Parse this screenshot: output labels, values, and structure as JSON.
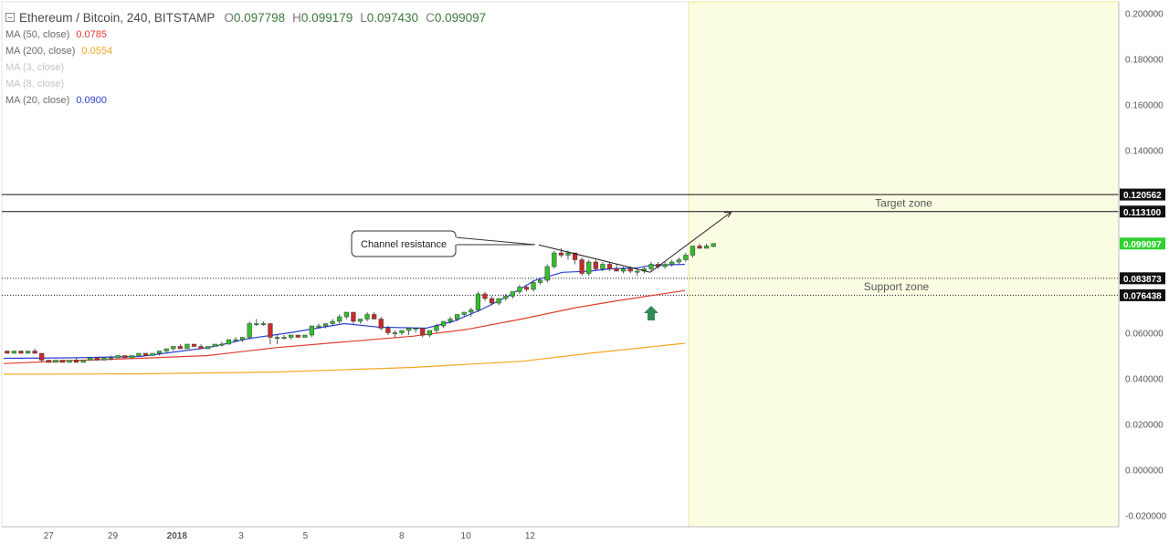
{
  "header": {
    "symbol": "Ethereum / Bitcoin, 240, BITSTAMP",
    "ohlc": [
      {
        "key": "O",
        "value": "0.097798"
      },
      {
        "key": "H",
        "value": "0.099179"
      },
      {
        "key": "L",
        "value": "0.097430"
      },
      {
        "key": "C",
        "value": "0.099097"
      }
    ]
  },
  "indicators": [
    {
      "name": "MA (50, close)",
      "value": "0.0785",
      "color": "#e03c31",
      "faded": false
    },
    {
      "name": "MA (200, close)",
      "value": "0.0554",
      "color": "#f5a623",
      "faded": false
    },
    {
      "name": "MA (3, close)",
      "value": "",
      "color": "#c4c4c4",
      "faded": true
    },
    {
      "name": "MA (8, close)",
      "value": "",
      "color": "#c4c4c4",
      "faded": true
    },
    {
      "name": "MA (20, close)",
      "value": "0.0900",
      "color": "#2b3fd1",
      "faded": false
    }
  ],
  "chart_data": {
    "type": "candlestick",
    "ylim": [
      -0.025,
      0.205
    ],
    "y_ticks": [
      "0.200000",
      "0.180000",
      "0.160000",
      "0.140000",
      "0.120562",
      "0.113100",
      "0.099097",
      "0.083873",
      "0.076438",
      "0.060000",
      "0.040000",
      "0.020000",
      "0.000000",
      "-0.020000"
    ],
    "y_tick_values": [
      0.2,
      0.18,
      0.16,
      0.14,
      0.06,
      0.04,
      0.02,
      0.0,
      -0.02
    ],
    "x_ticks": [
      {
        "label": "27",
        "t": 0.07
      },
      {
        "label": "29",
        "t": 0.17
      },
      {
        "label": "2018",
        "t": 0.27
      },
      {
        "label": "3",
        "t": 0.37
      },
      {
        "label": "5",
        "t": 0.47
      },
      {
        "label": "8",
        "t": 0.62
      },
      {
        "label": "10",
        "t": 0.72
      },
      {
        "label": "12",
        "t": 0.82
      }
    ],
    "last_price": "0.099097",
    "ohlc_candles": [
      [
        0.052,
        0.052,
        0.051,
        0.051
      ],
      [
        0.051,
        0.052,
        0.051,
        0.052
      ],
      [
        0.052,
        0.052,
        0.051,
        0.051
      ],
      [
        0.051,
        0.052,
        0.051,
        0.052
      ],
      [
        0.052,
        0.053,
        0.051,
        0.051
      ],
      [
        0.051,
        0.051,
        0.047,
        0.048
      ],
      [
        0.048,
        0.048,
        0.047,
        0.047
      ],
      [
        0.047,
        0.048,
        0.047,
        0.048
      ],
      [
        0.048,
        0.048,
        0.047,
        0.047
      ],
      [
        0.047,
        0.048,
        0.047,
        0.048
      ],
      [
        0.048,
        0.049,
        0.047,
        0.047
      ],
      [
        0.047,
        0.048,
        0.047,
        0.048
      ],
      [
        0.048,
        0.049,
        0.048,
        0.049
      ],
      [
        0.049,
        0.049,
        0.048,
        0.048
      ],
      [
        0.048,
        0.049,
        0.048,
        0.049
      ],
      [
        0.049,
        0.05,
        0.048,
        0.049
      ],
      [
        0.049,
        0.05,
        0.049,
        0.05
      ],
      [
        0.05,
        0.05,
        0.049,
        0.049
      ],
      [
        0.049,
        0.05,
        0.049,
        0.05
      ],
      [
        0.05,
        0.051,
        0.05,
        0.051
      ],
      [
        0.051,
        0.051,
        0.05,
        0.05
      ],
      [
        0.05,
        0.051,
        0.05,
        0.051
      ],
      [
        0.051,
        0.052,
        0.05,
        0.052
      ],
      [
        0.052,
        0.053,
        0.051,
        0.053
      ],
      [
        0.053,
        0.054,
        0.052,
        0.054
      ],
      [
        0.054,
        0.055,
        0.053,
        0.053
      ],
      [
        0.053,
        0.055,
        0.053,
        0.055
      ],
      [
        0.055,
        0.055,
        0.054,
        0.054
      ],
      [
        0.054,
        0.055,
        0.053,
        0.053
      ],
      [
        0.053,
        0.054,
        0.053,
        0.054
      ],
      [
        0.054,
        0.055,
        0.054,
        0.055
      ],
      [
        0.055,
        0.056,
        0.054,
        0.055
      ],
      [
        0.055,
        0.057,
        0.055,
        0.057
      ],
      [
        0.057,
        0.058,
        0.056,
        0.057
      ],
      [
        0.057,
        0.058,
        0.056,
        0.058
      ],
      [
        0.058,
        0.065,
        0.057,
        0.064
      ],
      [
        0.064,
        0.066,
        0.063,
        0.064
      ],
      [
        0.064,
        0.065,
        0.063,
        0.064
      ],
      [
        0.064,
        0.064,
        0.055,
        0.058
      ],
      [
        0.058,
        0.059,
        0.055,
        0.058
      ],
      [
        0.058,
        0.059,
        0.057,
        0.058
      ],
      [
        0.058,
        0.059,
        0.057,
        0.059
      ],
      [
        0.059,
        0.059,
        0.058,
        0.058
      ],
      [
        0.058,
        0.059,
        0.058,
        0.059
      ],
      [
        0.059,
        0.063,
        0.058,
        0.063
      ],
      [
        0.063,
        0.064,
        0.062,
        0.063
      ],
      [
        0.063,
        0.064,
        0.062,
        0.064
      ],
      [
        0.064,
        0.066,
        0.063,
        0.065
      ],
      [
        0.065,
        0.068,
        0.064,
        0.067
      ],
      [
        0.067,
        0.069,
        0.066,
        0.069
      ],
      [
        0.069,
        0.069,
        0.064,
        0.065
      ],
      [
        0.065,
        0.066,
        0.064,
        0.066
      ],
      [
        0.066,
        0.069,
        0.065,
        0.068
      ],
      [
        0.068,
        0.069,
        0.066,
        0.066
      ],
      [
        0.066,
        0.067,
        0.061,
        0.062
      ],
      [
        0.062,
        0.063,
        0.059,
        0.06
      ],
      [
        0.06,
        0.061,
        0.058,
        0.06
      ],
      [
        0.06,
        0.061,
        0.059,
        0.061
      ],
      [
        0.061,
        0.062,
        0.059,
        0.062
      ],
      [
        0.062,
        0.062,
        0.06,
        0.062
      ],
      [
        0.062,
        0.062,
        0.058,
        0.059
      ],
      [
        0.059,
        0.061,
        0.058,
        0.061
      ],
      [
        0.061,
        0.064,
        0.06,
        0.063
      ],
      [
        0.063,
        0.065,
        0.062,
        0.065
      ],
      [
        0.065,
        0.067,
        0.064,
        0.066
      ],
      [
        0.066,
        0.068,
        0.065,
        0.068
      ],
      [
        0.068,
        0.069,
        0.067,
        0.069
      ],
      [
        0.069,
        0.071,
        0.067,
        0.07
      ],
      [
        0.07,
        0.078,
        0.069,
        0.077
      ],
      [
        0.077,
        0.078,
        0.074,
        0.075
      ],
      [
        0.075,
        0.076,
        0.072,
        0.073
      ],
      [
        0.073,
        0.075,
        0.072,
        0.075
      ],
      [
        0.075,
        0.077,
        0.074,
        0.076
      ],
      [
        0.076,
        0.078,
        0.075,
        0.078
      ],
      [
        0.078,
        0.081,
        0.077,
        0.08
      ],
      [
        0.08,
        0.081,
        0.078,
        0.079
      ],
      [
        0.079,
        0.083,
        0.078,
        0.082
      ],
      [
        0.082,
        0.084,
        0.081,
        0.083
      ],
      [
        0.083,
        0.09,
        0.082,
        0.089
      ],
      [
        0.089,
        0.096,
        0.088,
        0.095
      ],
      [
        0.095,
        0.097,
        0.093,
        0.094
      ],
      [
        0.094,
        0.096,
        0.092,
        0.095
      ],
      [
        0.095,
        0.095,
        0.09,
        0.092
      ],
      [
        0.092,
        0.093,
        0.085,
        0.086
      ],
      [
        0.086,
        0.092,
        0.085,
        0.091
      ],
      [
        0.091,
        0.092,
        0.087,
        0.088
      ],
      [
        0.088,
        0.091,
        0.087,
        0.09
      ],
      [
        0.09,
        0.091,
        0.087,
        0.088
      ],
      [
        0.088,
        0.09,
        0.087,
        0.087
      ],
      [
        0.087,
        0.089,
        0.086,
        0.088
      ],
      [
        0.088,
        0.089,
        0.086,
        0.087
      ],
      [
        0.087,
        0.088,
        0.085,
        0.087
      ],
      [
        0.087,
        0.089,
        0.086,
        0.088
      ],
      [
        0.088,
        0.091,
        0.087,
        0.09
      ],
      [
        0.09,
        0.091,
        0.088,
        0.089
      ],
      [
        0.089,
        0.091,
        0.088,
        0.09
      ],
      [
        0.09,
        0.092,
        0.089,
        0.091
      ],
      [
        0.091,
        0.093,
        0.09,
        0.092
      ],
      [
        0.092,
        0.095,
        0.091,
        0.094
      ],
      [
        0.094,
        0.098,
        0.093,
        0.098
      ],
      [
        0.098,
        0.099,
        0.097,
        0.097
      ],
      [
        0.097,
        0.099,
        0.097,
        0.098
      ],
      [
        0.0978,
        0.0992,
        0.0974,
        0.0991
      ]
    ],
    "series": [
      {
        "name": "MA (20, close)",
        "color": "#2b3fd1",
        "points": [
          [
            0,
            0.0488
          ],
          [
            0.1,
            0.049
          ],
          [
            0.2,
            0.0496
          ],
          [
            0.3,
            0.0535
          ],
          [
            0.36,
            0.0575
          ],
          [
            0.42,
            0.06
          ],
          [
            0.5,
            0.064
          ],
          [
            0.55,
            0.0625
          ],
          [
            0.62,
            0.062
          ],
          [
            0.66,
            0.065
          ],
          [
            0.7,
            0.07
          ],
          [
            0.74,
            0.076
          ],
          [
            0.78,
            0.083
          ],
          [
            0.82,
            0.0865
          ],
          [
            0.86,
            0.087
          ],
          [
            0.89,
            0.088
          ],
          [
            0.93,
            0.0885
          ],
          [
            0.95,
            0.0895
          ],
          [
            1.0,
            0.09
          ]
        ]
      },
      {
        "name": "MA (50, close)",
        "color": "#e03c31",
        "points": [
          [
            0,
            0.0465
          ],
          [
            0.1,
            0.0478
          ],
          [
            0.2,
            0.0488
          ],
          [
            0.3,
            0.05
          ],
          [
            0.4,
            0.0535
          ],
          [
            0.5,
            0.056
          ],
          [
            0.6,
            0.0585
          ],
          [
            0.68,
            0.0615
          ],
          [
            0.76,
            0.066
          ],
          [
            0.84,
            0.071
          ],
          [
            0.9,
            0.074
          ],
          [
            1.0,
            0.0785
          ]
        ]
      },
      {
        "name": "MA (200, close)",
        "color": "#f5a623",
        "points": [
          [
            0,
            0.0418
          ],
          [
            0.2,
            0.042
          ],
          [
            0.4,
            0.0428
          ],
          [
            0.6,
            0.0448
          ],
          [
            0.76,
            0.0475
          ],
          [
            0.86,
            0.051
          ],
          [
            1.0,
            0.0554
          ]
        ]
      }
    ],
    "horizontal_levels": [
      0.120562,
      0.1131,
      0.083873,
      0.076438
    ],
    "target_zone": {
      "label": "Target zone",
      "from": 0.1131,
      "to": 0.120562
    },
    "support_zone": {
      "label": "Support zone",
      "from": 0.076438,
      "to": 0.083873
    },
    "annotations": [
      {
        "text": "Channel resistance"
      }
    ],
    "forecast_area_color": "#fbfde3"
  }
}
